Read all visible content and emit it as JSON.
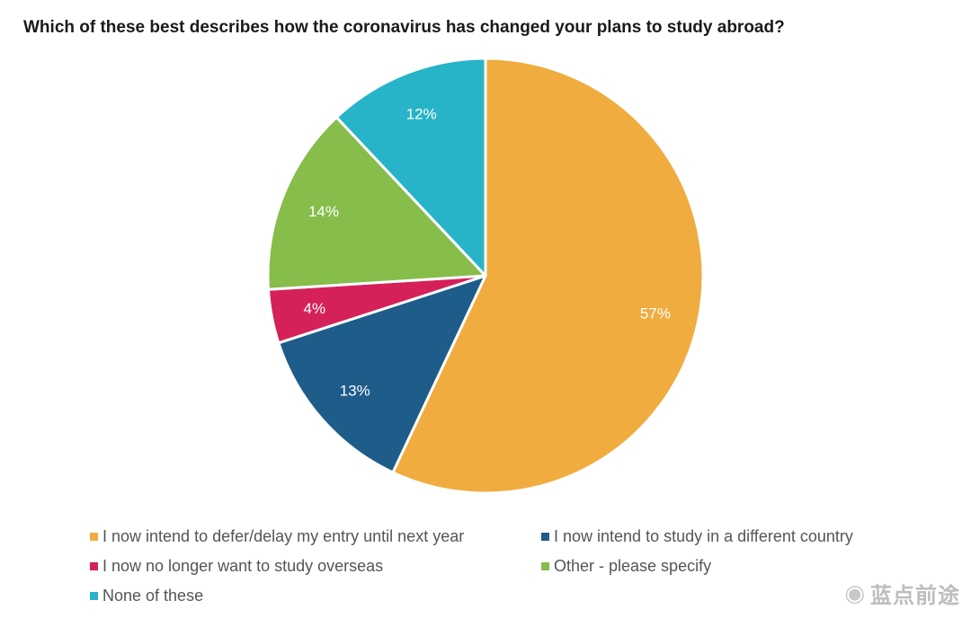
{
  "chart_data": {
    "type": "pie",
    "title": "Which of these best describes how the coronavirus has changed your plans to study abroad?",
    "slices": [
      {
        "name": "I now intend to defer/delay my entry until next year",
        "value": 57,
        "label": "57%",
        "color": "#F0AC3F"
      },
      {
        "name": "I now intend to study in a different country",
        "value": 13,
        "label": "13%",
        "color": "#1E5C8A"
      },
      {
        "name": "I now no longer want to study overseas",
        "value": 4,
        "label": "4%",
        "color": "#D4215A"
      },
      {
        "name": "Other - please specify",
        "value": 14,
        "label": "14%",
        "color": "#86BD4B"
      },
      {
        "name": "None of these",
        "value": 12,
        "label": "12%",
        "color": "#28B4C8"
      }
    ],
    "legend_position": "bottom",
    "start": "top, clockwise"
  },
  "watermark": {
    "text": "蓝点前途",
    "icon": "weibo-icon"
  }
}
